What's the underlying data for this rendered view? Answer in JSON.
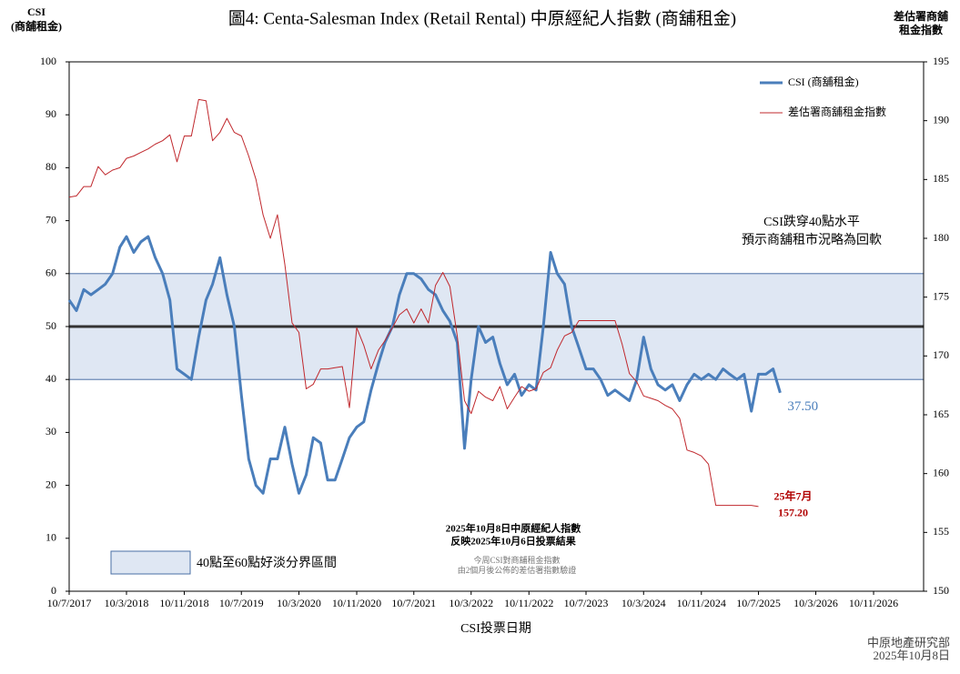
{
  "chart_data": {
    "type": "line",
    "title": "圖4: Centa-Salesman Index (Retail Rental)   中原經紀人指數 (商舖租金)",
    "ylabel": [
      "CSI",
      "(商舖租金)"
    ],
    "y2label": [
      "差估署商舖",
      "租金指數"
    ],
    "xlabel": "CSI投票日期",
    "x": [
      "2017-07-10",
      "2017-08-10",
      "2017-09-10",
      "2017-10-10",
      "2017-11-10",
      "2017-12-10",
      "2018-01-10",
      "2018-02-10",
      "2018-03-10",
      "2018-04-10",
      "2018-05-10",
      "2018-06-10",
      "2018-07-10",
      "2018-08-10",
      "2018-09-10",
      "2018-10-10",
      "2018-11-10",
      "2018-12-10",
      "2019-01-10",
      "2019-02-10",
      "2019-03-10",
      "2019-04-10",
      "2019-05-10",
      "2019-06-10",
      "2019-07-10",
      "2019-08-10",
      "2019-09-10",
      "2019-10-10",
      "2019-11-10",
      "2019-12-10",
      "2020-01-10",
      "2020-02-10",
      "2020-03-10",
      "2020-04-10",
      "2020-05-10",
      "2020-06-10",
      "2020-07-10",
      "2020-08-10",
      "2020-09-10",
      "2020-10-10",
      "2020-11-10",
      "2020-12-10",
      "2021-01-10",
      "2021-02-10",
      "2021-03-10",
      "2021-04-10",
      "2021-05-10",
      "2021-06-10",
      "2021-07-10",
      "2021-08-10",
      "2021-09-10",
      "2021-10-10",
      "2021-11-10",
      "2021-12-10",
      "2022-01-10",
      "2022-02-10",
      "2022-03-10",
      "2022-04-10",
      "2022-05-10",
      "2022-06-10",
      "2022-07-10",
      "2022-08-10",
      "2022-09-10",
      "2022-10-10",
      "2022-11-10",
      "2022-12-10",
      "2023-01-10",
      "2023-02-10",
      "2023-03-10",
      "2023-04-10",
      "2023-05-10",
      "2023-06-10",
      "2023-07-10",
      "2023-08-10",
      "2023-09-10",
      "2023-10-10",
      "2023-11-10",
      "2023-12-10",
      "2024-01-10",
      "2024-02-10",
      "2024-03-10",
      "2024-04-10",
      "2024-05-10",
      "2024-06-10",
      "2024-07-10",
      "2024-08-10",
      "2024-09-10",
      "2024-10-10",
      "2024-11-10",
      "2024-12-10",
      "2025-01-10",
      "2025-02-10",
      "2025-03-10",
      "2025-04-10",
      "2025-05-10",
      "2025-06-10",
      "2025-07-10",
      "2025-08-10",
      "2025-09-10",
      "2025-10-10"
    ],
    "series": [
      {
        "name": "CSI (商舖租金)",
        "color": "#4a7ebb",
        "axis": "y",
        "values": [
          55,
          53,
          57,
          56,
          57,
          58,
          60,
          65,
          67,
          64,
          66,
          67,
          63,
          60,
          55,
          42,
          41,
          40,
          48,
          55,
          58,
          63,
          56,
          50,
          37,
          25,
          20,
          18.5,
          25,
          25,
          31,
          24,
          18.5,
          22,
          29,
          28,
          21,
          21,
          25,
          29,
          31,
          32,
          38,
          43,
          47,
          50,
          56,
          60,
          60,
          59,
          57,
          56,
          53,
          51,
          47,
          27,
          40,
          50,
          47,
          48,
          43,
          39,
          41,
          37,
          39,
          38,
          50,
          64,
          60,
          58,
          50,
          46,
          42,
          42,
          40,
          37,
          38,
          37,
          36,
          40,
          48,
          42,
          39,
          38,
          39,
          36,
          39,
          41,
          40,
          41,
          40,
          42,
          41,
          40,
          41,
          34,
          41,
          41,
          42,
          37.5
        ],
        "value_labels": [
          null,
          null,
          null,
          null,
          null,
          null,
          null,
          null,
          null,
          null,
          null,
          null,
          null,
          null,
          null,
          null,
          null,
          null,
          null,
          null,
          null,
          null,
          null,
          null,
          null,
          null,
          null,
          null,
          null,
          null,
          null,
          null,
          null,
          null,
          null,
          null,
          null,
          null,
          null,
          null,
          null,
          null,
          null,
          null,
          null,
          null,
          null,
          null,
          null,
          null,
          null,
          null,
          null,
          null,
          null,
          null,
          null,
          null,
          null,
          null,
          null,
          null,
          null,
          null,
          null,
          null,
          null,
          null,
          null,
          null,
          null,
          null,
          null,
          null,
          null,
          null,
          null,
          null,
          null,
          null,
          null,
          null,
          null,
          null,
          null,
          null,
          null,
          null,
          null,
          null,
          null,
          null,
          null,
          null,
          null,
          null,
          null,
          null,
          null,
          "37.50"
        ]
      },
      {
        "name": "差估署商舖租金指數",
        "color": "#c0282d",
        "axis": "y2",
        "label_note": "25年7月",
        "values": [
          183.5,
          183.6,
          184.4,
          184.4,
          186.1,
          185.4,
          185.8,
          186,
          186.8,
          187,
          187.3,
          187.6,
          188,
          188.3,
          188.8,
          186.5,
          188.7,
          188.7,
          191.8,
          191.7,
          188.3,
          189,
          190.2,
          189,
          188.7,
          187,
          185,
          182,
          180,
          182,
          177.8,
          172.8,
          172,
          167.2,
          167.6,
          168.9,
          168.9,
          169,
          169.1,
          165.6,
          172.4,
          170.9,
          168.9,
          170.5,
          171.3,
          172.4,
          173.5,
          174,
          172.8,
          174,
          172.8,
          176,
          177.1,
          175.9,
          171.7,
          166.2,
          165.1,
          167,
          166.5,
          166.2,
          167.4,
          165.5,
          166.5,
          167.4,
          167,
          167.2,
          168.6,
          169,
          170.5,
          171.7,
          172,
          173,
          173,
          173,
          173,
          173,
          173,
          171,
          168.5,
          167.8,
          166.6,
          166.4,
          166.2,
          165.8,
          165.5,
          164.7,
          162,
          161.8,
          161.5,
          160.8,
          157.3,
          157.3,
          157.3,
          157.3,
          157.3,
          157.3,
          157.2,
          null,
          null,
          null
        ],
        "value_labels": [
          null,
          null,
          null,
          null,
          null,
          null,
          null,
          null,
          null,
          null,
          null,
          null,
          null,
          null,
          null,
          null,
          null,
          null,
          null,
          null,
          null,
          null,
          null,
          null,
          null,
          null,
          null,
          null,
          null,
          null,
          null,
          null,
          null,
          null,
          null,
          null,
          null,
          null,
          null,
          null,
          null,
          null,
          null,
          null,
          null,
          null,
          null,
          null,
          null,
          null,
          null,
          null,
          null,
          null,
          null,
          null,
          null,
          null,
          null,
          null,
          null,
          null,
          null,
          null,
          null,
          null,
          null,
          null,
          null,
          null,
          null,
          null,
          null,
          null,
          null,
          null,
          null,
          null,
          null,
          null,
          null,
          null,
          null,
          null,
          null,
          null,
          null,
          null,
          null,
          null,
          null,
          null,
          null,
          null,
          null,
          null,
          "157.20",
          null,
          null,
          null
        ]
      }
    ],
    "xlim": [
      "2017-07-10",
      "2027-06-10"
    ],
    "xticks": [
      {
        "value": "2017-07-10",
        "label": "10/7/2017"
      },
      {
        "value": "2018-03-10",
        "label": "10/3/2018"
      },
      {
        "value": "2018-11-10",
        "label": "10/11/2018"
      },
      {
        "value": "2019-07-10",
        "label": "10/7/2019"
      },
      {
        "value": "2020-03-10",
        "label": "10/3/2020"
      },
      {
        "value": "2020-11-10",
        "label": "10/11/2020"
      },
      {
        "value": "2021-07-10",
        "label": "10/7/2021"
      },
      {
        "value": "2022-03-10",
        "label": "10/3/2022"
      },
      {
        "value": "2022-11-10",
        "label": "10/11/2022"
      },
      {
        "value": "2023-07-10",
        "label": "10/7/2023"
      },
      {
        "value": "2024-03-10",
        "label": "10/3/2024"
      },
      {
        "value": "2024-11-10",
        "label": "10/11/2024"
      },
      {
        "value": "2025-07-10",
        "label": "10/7/2025"
      },
      {
        "value": "2026-03-10",
        "label": "10/3/2026"
      },
      {
        "value": "2026-11-10",
        "label": "10/11/2026"
      }
    ],
    "ylim": [
      0,
      100
    ],
    "yticks": [
      0,
      10,
      20,
      30,
      40,
      50,
      60,
      70,
      80,
      90,
      100
    ],
    "y2lim": [
      150,
      195
    ],
    "y2ticks": [
      150,
      155,
      160,
      165,
      170,
      175,
      180,
      185,
      190,
      195
    ],
    "band": [
      40,
      60
    ],
    "band_color": "#dfe7f3",
    "band_label": "40點至60點好淡分界區間",
    "midline": 50,
    "legend": "top-right",
    "annotations": {
      "drop": [
        "CSI跌穿40點水平",
        "預示商舖租市況略為回軟"
      ],
      "release": [
        "2025年10月8日中原經紀人指數",
        "反映2025年10月6日投票結果"
      ],
      "verify": [
        "今周CSI對商舖租金指數",
        "由2個月後公佈的差估署指數驗證"
      ]
    },
    "source": [
      "中原地產研究部",
      "2025年10月8日"
    ]
  }
}
